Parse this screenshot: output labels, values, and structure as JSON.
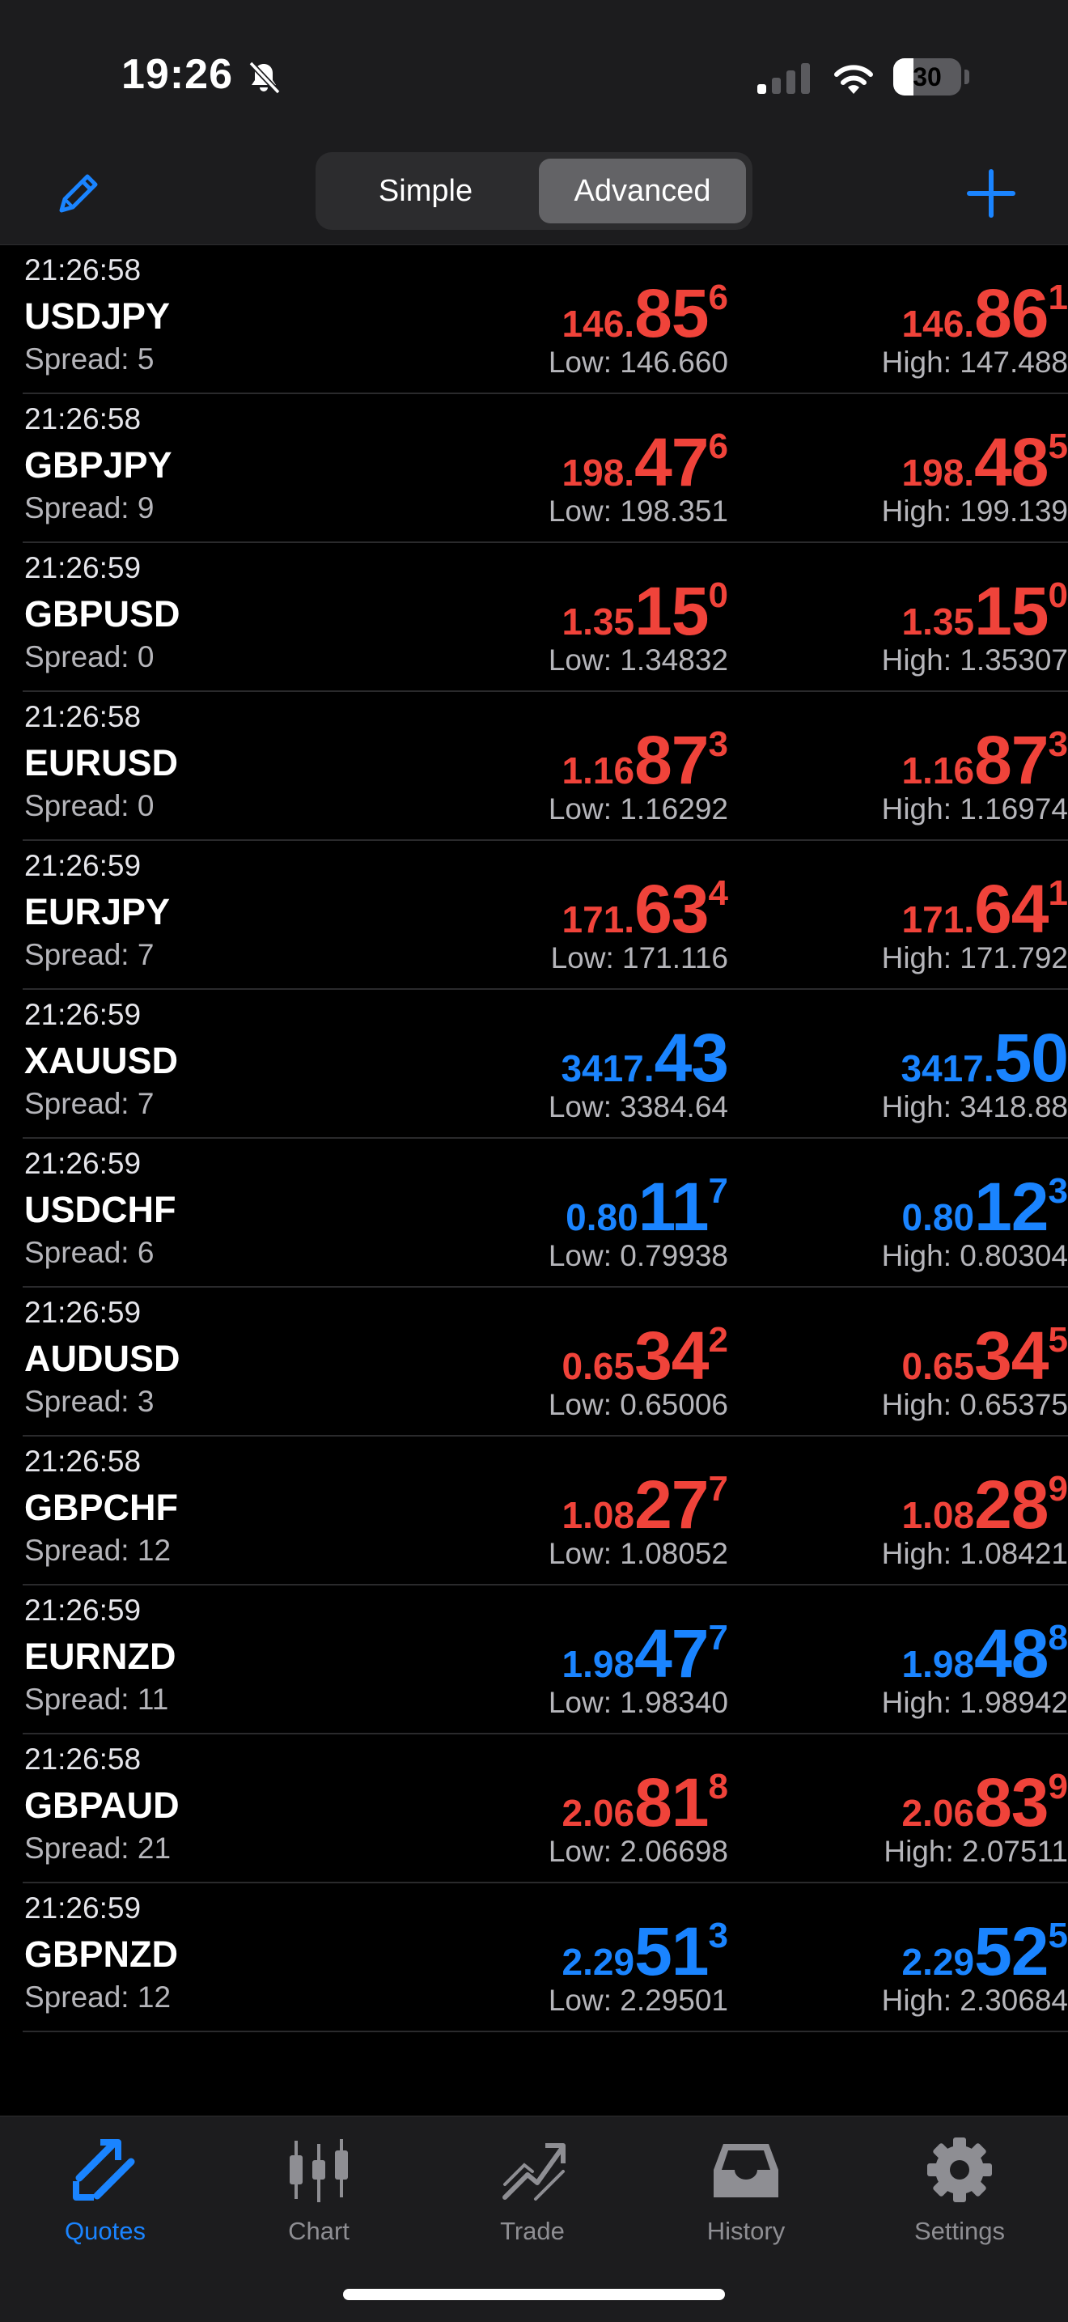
{
  "status_bar": {
    "time": "19:26",
    "battery": "30",
    "battery_level": 0.3
  },
  "toolbar": {
    "segments": [
      "Simple",
      "Advanced"
    ],
    "selected_segment": "Advanced"
  },
  "colors": {
    "down": "#f0433a",
    "up": "#1a84ff",
    "accent": "#1a84ff"
  },
  "quotes": [
    {
      "time": "21:26:58",
      "symbol": "USDJPY",
      "spread": "Spread: 5",
      "bid": {
        "p1": "146.",
        "p2": "85",
        "p3": "6"
      },
      "ask": {
        "p1": "146.",
        "p2": "86",
        "p3": "1"
      },
      "low": "Low: 146.660",
      "high": "High: 147.488",
      "color": "#f0433a"
    },
    {
      "time": "21:26:58",
      "symbol": "GBPJPY",
      "spread": "Spread: 9",
      "bid": {
        "p1": "198.",
        "p2": "47",
        "p3": "6"
      },
      "ask": {
        "p1": "198.",
        "p2": "48",
        "p3": "5"
      },
      "low": "Low: 198.351",
      "high": "High: 199.139",
      "color": "#f0433a"
    },
    {
      "time": "21:26:59",
      "symbol": "GBPUSD",
      "spread": "Spread: 0",
      "bid": {
        "p1": "1.35",
        "p2": "15",
        "p3": "0"
      },
      "ask": {
        "p1": "1.35",
        "p2": "15",
        "p3": "0"
      },
      "low": "Low: 1.34832",
      "high": "High: 1.35307",
      "color": "#f0433a"
    },
    {
      "time": "21:26:58",
      "symbol": "EURUSD",
      "spread": "Spread: 0",
      "bid": {
        "p1": "1.16",
        "p2": "87",
        "p3": "3"
      },
      "ask": {
        "p1": "1.16",
        "p2": "87",
        "p3": "3"
      },
      "low": "Low: 1.16292",
      "high": "High: 1.16974",
      "color": "#f0433a"
    },
    {
      "time": "21:26:59",
      "symbol": "EURJPY",
      "spread": "Spread: 7",
      "bid": {
        "p1": "171.",
        "p2": "63",
        "p3": "4"
      },
      "ask": {
        "p1": "171.",
        "p2": "64",
        "p3": "1"
      },
      "low": "Low: 171.116",
      "high": "High: 171.792",
      "color": "#f0433a"
    },
    {
      "time": "21:26:59",
      "symbol": "XAUUSD",
      "spread": "Spread: 7",
      "bid": {
        "p1": "3417.",
        "p2": "43",
        "p3": ""
      },
      "ask": {
        "p1": "3417.",
        "p2": "50",
        "p3": ""
      },
      "low": "Low: 3384.64",
      "high": "High: 3418.88",
      "color": "#1a84ff"
    },
    {
      "time": "21:26:59",
      "symbol": "USDCHF",
      "spread": "Spread: 6",
      "bid": {
        "p1": "0.80",
        "p2": "11",
        "p3": "7"
      },
      "ask": {
        "p1": "0.80",
        "p2": "12",
        "p3": "3"
      },
      "low": "Low: 0.79938",
      "high": "High: 0.80304",
      "color": "#1a84ff"
    },
    {
      "time": "21:26:59",
      "symbol": "AUDUSD",
      "spread": "Spread: 3",
      "bid": {
        "p1": "0.65",
        "p2": "34",
        "p3": "2"
      },
      "ask": {
        "p1": "0.65",
        "p2": "34",
        "p3": "5"
      },
      "low": "Low: 0.65006",
      "high": "High: 0.65375",
      "color": "#f0433a"
    },
    {
      "time": "21:26:58",
      "symbol": "GBPCHF",
      "spread": "Spread: 12",
      "bid": {
        "p1": "1.08",
        "p2": "27",
        "p3": "7"
      },
      "ask": {
        "p1": "1.08",
        "p2": "28",
        "p3": "9"
      },
      "low": "Low: 1.08052",
      "high": "High: 1.08421",
      "color": "#f0433a"
    },
    {
      "time": "21:26:59",
      "symbol": "EURNZD",
      "spread": "Spread: 11",
      "bid": {
        "p1": "1.98",
        "p2": "47",
        "p3": "7"
      },
      "ask": {
        "p1": "1.98",
        "p2": "48",
        "p3": "8"
      },
      "low": "Low: 1.98340",
      "high": "High: 1.98942",
      "color": "#1a84ff"
    },
    {
      "time": "21:26:58",
      "symbol": "GBPAUD",
      "spread": "Spread: 21",
      "bid": {
        "p1": "2.06",
        "p2": "81",
        "p3": "8"
      },
      "ask": {
        "p1": "2.06",
        "p2": "83",
        "p3": "9"
      },
      "low": "Low: 2.06698",
      "high": "High: 2.07511",
      "color": "#f0433a"
    },
    {
      "time": "21:26:59",
      "symbol": "GBPNZD",
      "spread": "Spread: 12",
      "bid": {
        "p1": "2.29",
        "p2": "51",
        "p3": "3"
      },
      "ask": {
        "p1": "2.29",
        "p2": "52",
        "p3": "5"
      },
      "low": "Low: 2.29501",
      "high": "High: 2.30684",
      "color": "#1a84ff"
    }
  ],
  "tabbar": {
    "active": "Quotes",
    "tabs": [
      {
        "label": "Quotes",
        "icon": "quotes-arrows-icon"
      },
      {
        "label": "Chart",
        "icon": "candlestick-chart-icon"
      },
      {
        "label": "Trade",
        "icon": "trade-trend-icon"
      },
      {
        "label": "History",
        "icon": "inbox-tray-icon"
      },
      {
        "label": "Settings",
        "icon": "gear-icon"
      }
    ]
  }
}
